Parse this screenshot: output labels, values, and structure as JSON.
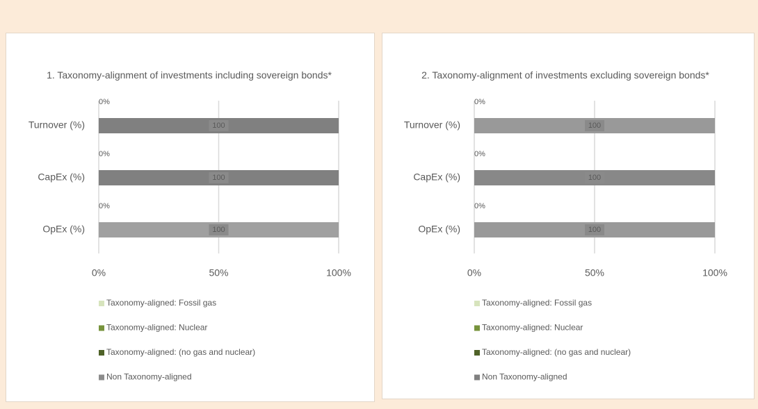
{
  "chart_data": [
    {
      "type": "bar",
      "orientation": "horizontal",
      "stacked": true,
      "title": "1. Taxonomy-alignment of investments including sovereign bonds*",
      "categories": [
        "Turnover (%)",
        "CapEx (%)",
        "OpEx (%)"
      ],
      "series": [
        {
          "name": "Taxonomy-aligned: Fossil gas",
          "color": "#d7e4bd",
          "values": [
            0,
            0,
            0
          ]
        },
        {
          "name": "Taxonomy-aligned:  Nuclear",
          "color": "#77933c",
          "values": [
            0,
            0,
            0
          ]
        },
        {
          "name": "Taxonomy-aligned: (no gas and nuclear)",
          "color": "#4f6228",
          "values": [
            0,
            0,
            0
          ],
          "value_labels": [
            "0%",
            "0%",
            "0%"
          ]
        },
        {
          "name": "Non Taxonomy-aligned",
          "color": "#8c8c8c",
          "colors": [
            "#808080",
            "#808080",
            "#a0a0a0"
          ],
          "values": [
            100,
            100,
            100
          ],
          "show_values": true
        }
      ],
      "xlim": [
        0,
        100
      ],
      "xticks": [
        {
          "value": 0,
          "label": "0%"
        },
        {
          "value": 50,
          "label": "50%"
        },
        {
          "value": 100,
          "label": "100%"
        }
      ],
      "grid": true,
      "legend": "bottom"
    },
    {
      "type": "bar",
      "orientation": "horizontal",
      "stacked": true,
      "title": "2. Taxonomy-alignment of investments excluding sovereign bonds*",
      "categories": [
        "Turnover (%)",
        "CapEx (%)",
        "OpEx (%)"
      ],
      "series": [
        {
          "name": "Taxonomy-aligned: Fossil gas",
          "color": "#d7e4bd",
          "values": [
            0,
            0,
            0
          ]
        },
        {
          "name": "Taxonomy-aligned:  Nuclear",
          "color": "#77933c",
          "values": [
            0,
            0,
            0
          ]
        },
        {
          "name": "Taxonomy-aligned: (no gas and nuclear)",
          "color": "#4f6228",
          "values": [
            0,
            0,
            0
          ],
          "value_labels": [
            "0%",
            "0%",
            "0%"
          ]
        },
        {
          "name": "Non Taxonomy-aligned",
          "color": "#808080",
          "colors": [
            "#999999",
            "#888888",
            "#999999"
          ],
          "values": [
            100,
            100,
            100
          ],
          "show_values": true
        }
      ],
      "xlim": [
        0,
        100
      ],
      "xticks": [
        {
          "value": 0,
          "label": "0%"
        },
        {
          "value": 50,
          "label": "50%"
        },
        {
          "value": 100,
          "label": "100%"
        }
      ],
      "grid": true,
      "legend": "bottom"
    }
  ]
}
